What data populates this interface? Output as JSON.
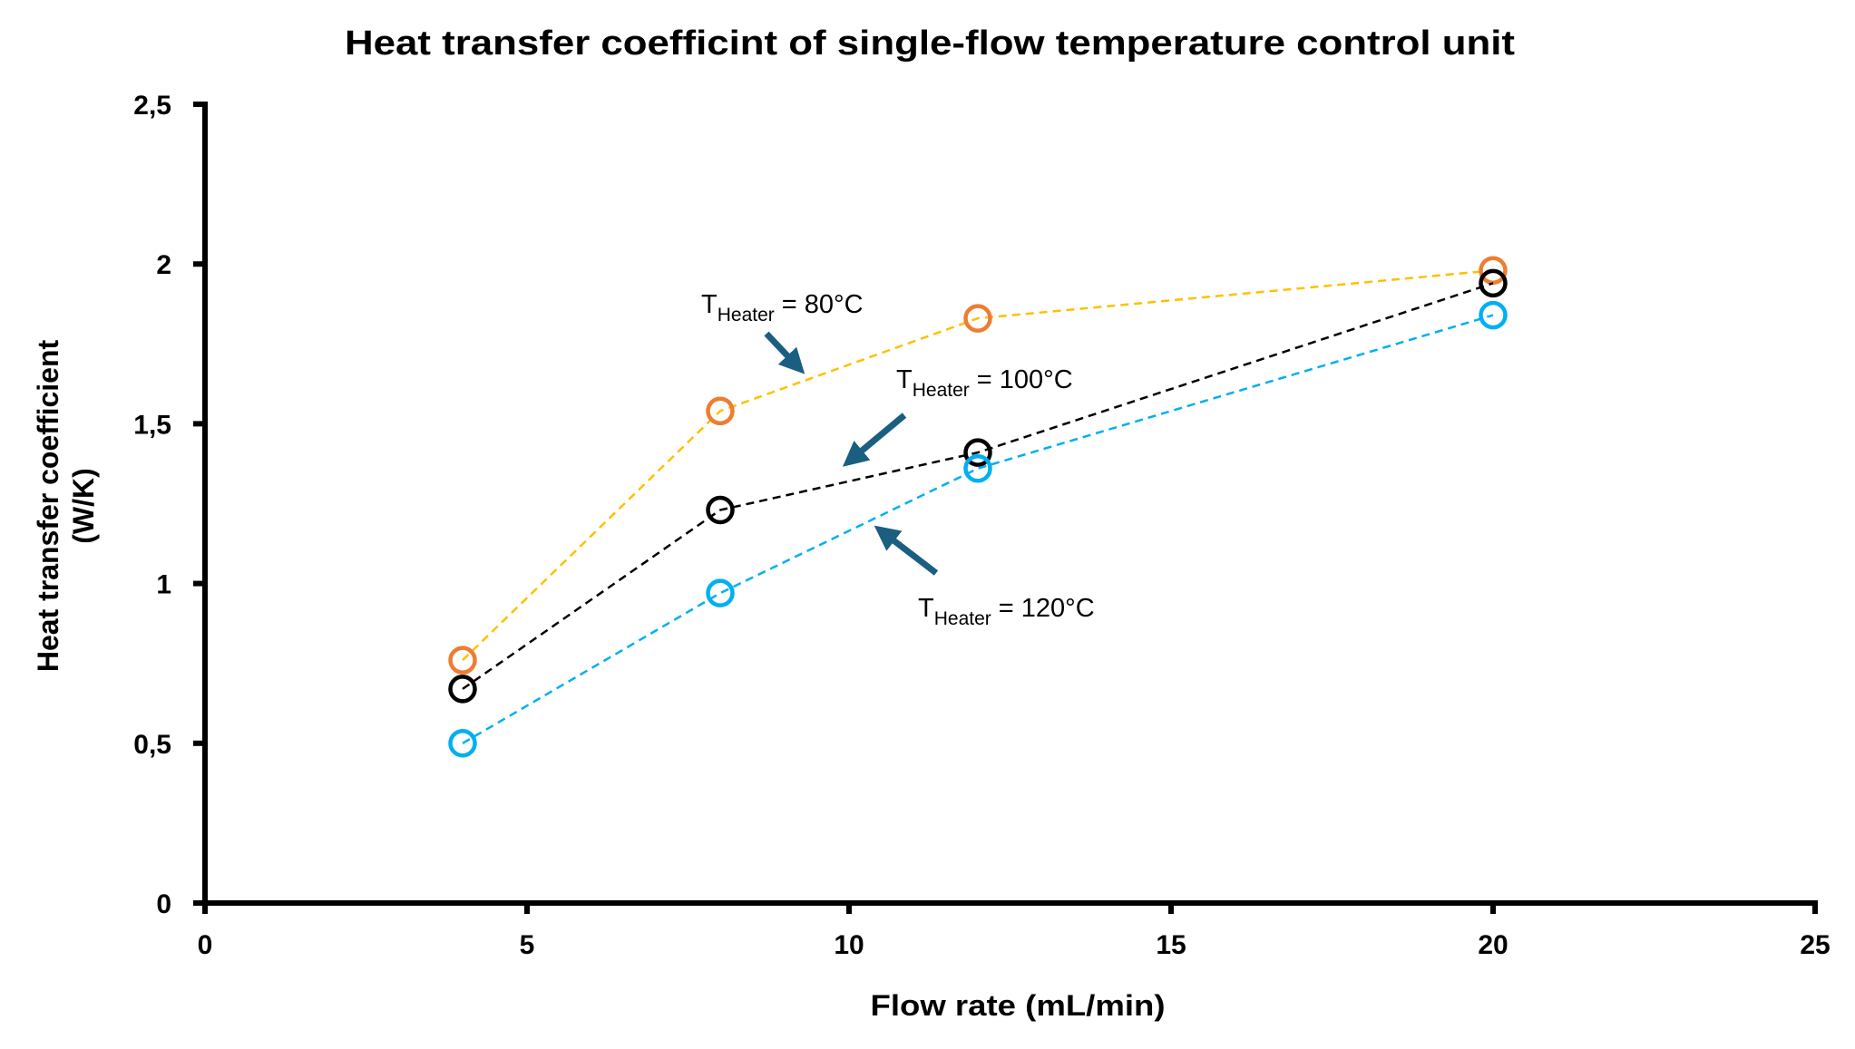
{
  "chart_data": {
    "type": "scatter",
    "title": "Heat transfer coefficint of single-flow temperature control unit",
    "xlabel": "Flow rate (mL/min)",
    "ylabel_lines": [
      "Heat transfer coefficient",
      "(W/K)"
    ],
    "xlim": [
      0,
      25
    ],
    "ylim": [
      0,
      2.5
    ],
    "xticks": [
      0,
      5,
      10,
      15,
      20,
      25
    ],
    "xtick_labels": [
      "0",
      "5",
      "10",
      "15",
      "20",
      "25"
    ],
    "yticks": [
      0,
      0.5,
      1,
      1.5,
      2,
      2.5
    ],
    "ytick_labels": [
      "0",
      "0,5",
      "1",
      "1,5",
      "2",
      "2,5"
    ],
    "grid": false,
    "legend": "none",
    "x": [
      4,
      8,
      12,
      20
    ],
    "series": [
      {
        "name": "T_Heater = 80°C",
        "values": [
          0.76,
          1.54,
          1.83,
          1.98
        ],
        "marker_color": "#ED7D31",
        "line_color": "#FFC000",
        "line_style": "dashed"
      },
      {
        "name": "T_Heater = 100°C",
        "values": [
          0.67,
          1.23,
          1.41,
          1.94
        ],
        "marker_color": "#000000",
        "line_color": "#000000",
        "line_style": "dashed"
      },
      {
        "name": "T_Heater = 120°C",
        "values": [
          0.5,
          0.97,
          1.36,
          1.84
        ],
        "marker_color": "#00B0F0",
        "line_color": "#00B0F0",
        "line_style": "dashed"
      }
    ],
    "annotations": [
      {
        "main": "T",
        "sub": "Heater",
        "rest": " = 80°C",
        "arrow_color": "#1B5F80",
        "points_to": "T_Heater = 80°C"
      },
      {
        "main": "T",
        "sub": "Heater",
        "rest": " = 100°C",
        "arrow_color": "#1B5F80",
        "points_to": "T_Heater = 100°C"
      },
      {
        "main": "T",
        "sub": "Heater",
        "rest": " = 120°C",
        "arrow_color": "#1B5F80",
        "points_to": "T_Heater = 120°C"
      }
    ]
  }
}
